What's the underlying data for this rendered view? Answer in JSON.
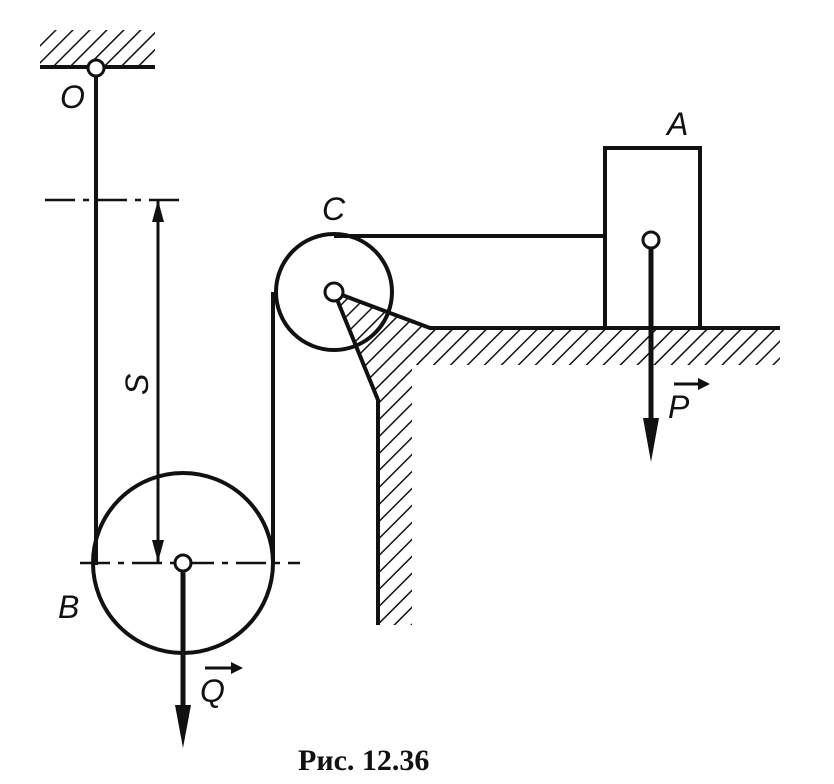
{
  "labels": {
    "O": "O",
    "A": "A",
    "B": "B",
    "C": "C",
    "S": "S",
    "P": "P",
    "Q": "Q"
  },
  "caption": "Рис. 12.36"
}
